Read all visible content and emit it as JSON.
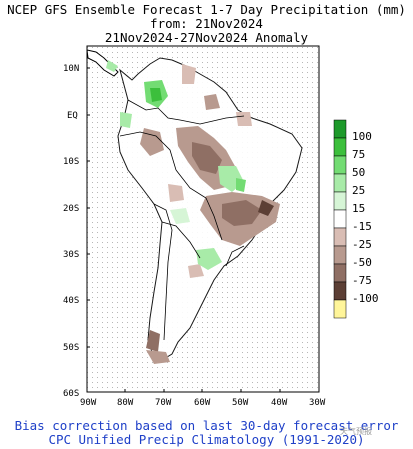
{
  "title": {
    "line1": "NCEP GFS Ensemble Forecast 1-7 Day Precipitation (mm)",
    "line2": "from: 21Nov2024",
    "line3": "21Nov2024-27Nov2024 Anomaly"
  },
  "footer": {
    "line1": "Bias correction based on last 30-day forecast error",
    "line2": "CPC Unified Precip Climatology (1991-2020)"
  },
  "watermark": "天气预报",
  "axes": {
    "lat_labels": [
      "10N",
      "EQ",
      "10S",
      "20S",
      "30S",
      "40S",
      "50S",
      "60S"
    ],
    "lon_labels": [
      "90W",
      "80W",
      "70W",
      "60W",
      "50W",
      "40W",
      "30W"
    ]
  },
  "colorbar": {
    "labels": [
      "100",
      "75",
      "50",
      "25",
      "15",
      "-15",
      "-25",
      "-50",
      "-75",
      "-100"
    ],
    "colors": [
      "#1e9a2b",
      "#3cbf3c",
      "#73dc73",
      "#a8eba8",
      "#d6f5d6",
      "#ffffff",
      "#d9bdb4",
      "#b89a8f",
      "#8f6f64",
      "#5c3f35",
      "#fff59a"
    ]
  }
}
